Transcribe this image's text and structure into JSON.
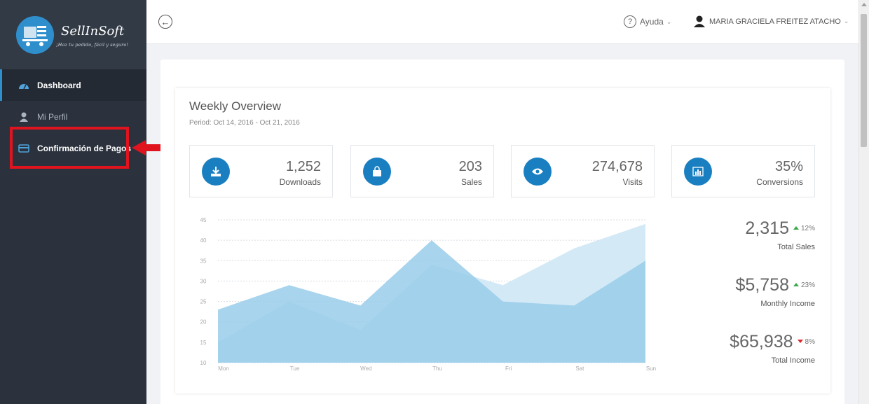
{
  "brand": {
    "name": "SellInSoft",
    "tagline": "¡Haz tu pedido, fácil y seguro!"
  },
  "sidebar": {
    "items": [
      {
        "label": "Dashboard",
        "icon": "dashboard-gauge-icon"
      },
      {
        "label": "Mi Perfil",
        "icon": "user-icon"
      },
      {
        "label": "Confirmación de Pagos",
        "icon": "credit-card-icon"
      }
    ]
  },
  "topbar": {
    "help_label": "Ayuda",
    "user_name": "MARIA GRACIELA FREITEZ ATACHO"
  },
  "overview": {
    "title": "Weekly Overview",
    "period": "Period: Oct 14, 2016 - Oct 21, 2016"
  },
  "stats": [
    {
      "value": "1,252",
      "label": "Downloads",
      "icon": "download-icon"
    },
    {
      "value": "203",
      "label": "Sales",
      "icon": "shopping-bag-icon"
    },
    {
      "value": "274,678",
      "label": "Visits",
      "icon": "eye-icon"
    },
    {
      "value": "35%",
      "label": "Conversions",
      "icon": "bar-chart-icon"
    }
  ],
  "kpis": [
    {
      "value": "2,315",
      "change": "12%",
      "direction": "up",
      "label": "Total Sales"
    },
    {
      "value": "$5,758",
      "change": "23%",
      "direction": "up",
      "label": "Monthly Income"
    },
    {
      "value": "$65,938",
      "change": "8%",
      "direction": "down",
      "label": "Total Income"
    }
  ],
  "colors": {
    "accent": "#1a7fc1",
    "sidebar": "#2b323d",
    "highlight": "#e0141e",
    "area_light": "#d3e9f6",
    "area_dark": "#99cdea"
  },
  "chart_data": {
    "type": "area",
    "categories": [
      "Mon",
      "Tue",
      "Wed",
      "Thu",
      "Fri",
      "Sat",
      "Sun"
    ],
    "yticks": [
      10,
      15,
      20,
      25,
      30,
      35,
      40,
      45
    ],
    "ylim": [
      10,
      45
    ],
    "grid": true,
    "series": [
      {
        "values": [
          15,
          25,
          18,
          34,
          29,
          38,
          44
        ]
      },
      {
        "values": [
          23,
          29,
          24,
          40,
          25,
          24,
          35
        ]
      }
    ]
  }
}
